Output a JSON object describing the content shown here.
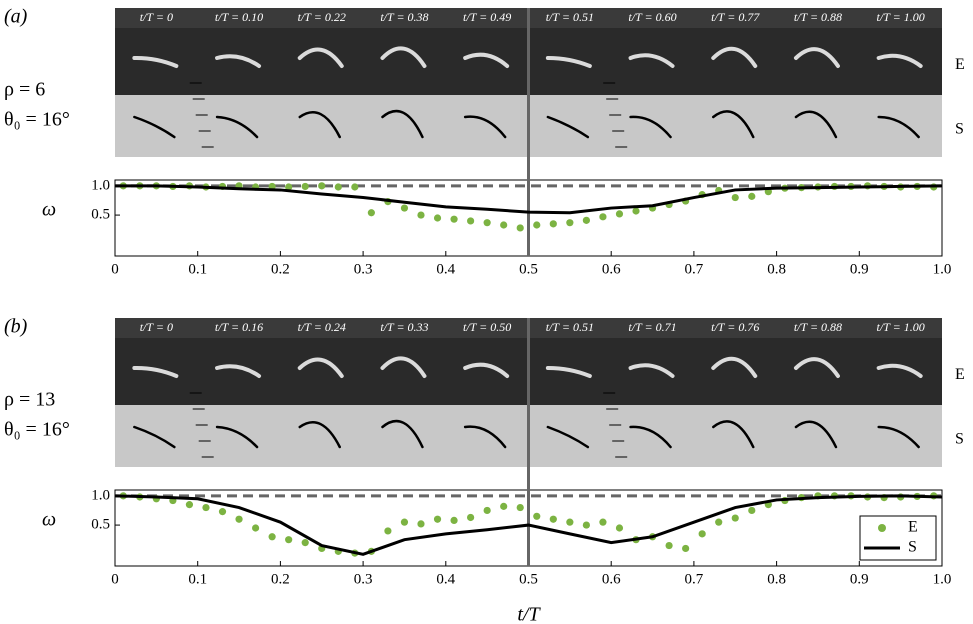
{
  "chart_data": [
    {
      "type": "scatter-line",
      "panel_label": "(a)",
      "params": [
        "ρ = 6",
        "θ₀ = 16°"
      ],
      "frame_labels": [
        "t/T = 0",
        "t/T = 0.10",
        "t/T = 0.22",
        "t/T = 0.38",
        "t/T = 0.49",
        "t/T = 0.51",
        "t/T = 0.60",
        "t/T = 0.77",
        "t/T = 0.88",
        "t/T = 1.00"
      ],
      "row_labels": [
        "E",
        "S"
      ],
      "y_label": "ω",
      "xlim": [
        0,
        1
      ],
      "ylim": [
        -0.2,
        1.1
      ],
      "xticks": [
        0,
        0.1,
        0.2,
        0.3,
        0.4,
        0.5,
        0.6,
        0.7,
        0.8,
        0.9,
        {
          "value": 1,
          "label": "1.0"
        }
      ],
      "yticks": [
        0.5,
        {
          "value": 1,
          "label": "1.0"
        }
      ],
      "reference_line": 1,
      "divider": 0.5,
      "legend": false,
      "series": [
        {
          "kind": "scatter",
          "color": "#7cb342",
          "x": [
            0.01,
            0.03,
            0.05,
            0.07,
            0.09,
            0.11,
            0.13,
            0.15,
            0.17,
            0.19,
            0.21,
            0.23,
            0.25,
            0.27,
            0.29,
            0.31,
            0.33,
            0.35,
            0.37,
            0.39,
            0.41,
            0.43,
            0.45,
            0.47,
            0.49,
            0.51,
            0.53,
            0.55,
            0.57,
            0.59,
            0.61,
            0.63,
            0.65,
            0.67,
            0.69,
            0.71,
            0.73,
            0.75,
            0.77,
            0.79,
            0.81,
            0.83,
            0.85,
            0.87,
            0.89,
            0.91,
            0.93,
            0.95,
            0.97,
            0.99
          ],
          "values": [
            1.0,
            1.0,
            1.0,
            0.99,
            1.0,
            0.98,
            0.99,
            1.0,
            0.98,
            0.99,
            0.98,
            0.99,
            1.0,
            0.98,
            0.98,
            0.54,
            0.73,
            0.62,
            0.5,
            0.45,
            0.43,
            0.4,
            0.37,
            0.33,
            0.28,
            0.33,
            0.35,
            0.37,
            0.41,
            0.47,
            0.52,
            0.57,
            0.62,
            0.68,
            0.74,
            0.85,
            0.92,
            0.8,
            0.82,
            0.9,
            0.96,
            0.97,
            0.98,
            0.99,
            0.99,
            1.0,
            0.99,
            0.98,
            0.99,
            0.98
          ]
        },
        {
          "kind": "line",
          "color": "#000000",
          "x": [
            0,
            0.05,
            0.1,
            0.15,
            0.2,
            0.25,
            0.3,
            0.35,
            0.4,
            0.45,
            0.5,
            0.55,
            0.6,
            0.65,
            0.7,
            0.75,
            0.8,
            0.85,
            0.9,
            0.95,
            1.0
          ],
          "values": [
            1.0,
            1.0,
            0.98,
            0.95,
            0.93,
            0.86,
            0.8,
            0.72,
            0.64,
            0.6,
            0.55,
            0.54,
            0.62,
            0.66,
            0.8,
            0.93,
            0.96,
            0.97,
            0.98,
            0.99,
            1.0
          ]
        }
      ]
    },
    {
      "type": "scatter-line",
      "panel_label": "(b)",
      "params": [
        "ρ = 13",
        "θ₀ = 16°"
      ],
      "frame_labels": [
        "t/T = 0",
        "t/T = 0.16",
        "t/T = 0.24",
        "t/T = 0.33",
        "t/T = 0.50",
        "t/T = 0.51",
        "t/T = 0.71",
        "t/T = 0.76",
        "t/T = 0.88",
        "t/T = 1.00"
      ],
      "row_labels": [
        "E",
        "S"
      ],
      "y_label": "ω",
      "x_label": "t/T",
      "xlim": [
        0,
        1
      ],
      "ylim": [
        -0.2,
        1.1
      ],
      "xticks": [
        0,
        0.1,
        0.2,
        0.3,
        0.4,
        0.5,
        0.6,
        0.7,
        0.8,
        0.9,
        {
          "value": 1,
          "label": "1.0"
        }
      ],
      "yticks": [
        0.5,
        {
          "value": 1,
          "label": "1.0"
        }
      ],
      "reference_line": 1,
      "divider": 0.5,
      "legend": "lower right",
      "series": [
        {
          "kind": "scatter",
          "name": "E",
          "color": "#7cb342",
          "x": [
            0.01,
            0.03,
            0.05,
            0.07,
            0.09,
            0.11,
            0.13,
            0.15,
            0.17,
            0.19,
            0.21,
            0.23,
            0.25,
            0.27,
            0.29,
            0.31,
            0.33,
            0.35,
            0.37,
            0.39,
            0.41,
            0.43,
            0.45,
            0.47,
            0.49,
            0.51,
            0.53,
            0.55,
            0.57,
            0.59,
            0.61,
            0.63,
            0.65,
            0.67,
            0.69,
            0.71,
            0.73,
            0.75,
            0.77,
            0.79,
            0.81,
            0.83,
            0.85,
            0.87,
            0.89,
            0.91,
            0.93,
            0.95,
            0.97,
            0.99
          ],
          "values": [
            1.0,
            0.98,
            0.95,
            0.92,
            0.85,
            0.8,
            0.73,
            0.6,
            0.45,
            0.3,
            0.25,
            0.2,
            0.1,
            0.05,
            0.02,
            0.05,
            0.4,
            0.55,
            0.52,
            0.6,
            0.58,
            0.63,
            0.75,
            0.82,
            0.8,
            0.65,
            0.6,
            0.55,
            0.5,
            0.55,
            0.45,
            0.25,
            0.3,
            0.15,
            0.1,
            0.35,
            0.55,
            0.62,
            0.75,
            0.85,
            0.92,
            0.97,
            1.0,
            1.0,
            1.0,
            0.98,
            0.97,
            0.98,
            0.99,
            1.0
          ]
        },
        {
          "kind": "line",
          "name": "S",
          "color": "#000000",
          "x": [
            0,
            0.05,
            0.1,
            0.15,
            0.2,
            0.25,
            0.3,
            0.35,
            0.4,
            0.45,
            0.5,
            0.55,
            0.6,
            0.65,
            0.7,
            0.75,
            0.8,
            0.85,
            0.9,
            0.95,
            1.0
          ],
          "values": [
            1.0,
            0.98,
            0.95,
            0.8,
            0.55,
            0.15,
            0.0,
            0.25,
            0.35,
            0.42,
            0.5,
            0.35,
            0.2,
            0.3,
            0.55,
            0.8,
            0.93,
            0.97,
            0.99,
            1.0,
            0.98
          ]
        }
      ]
    }
  ]
}
